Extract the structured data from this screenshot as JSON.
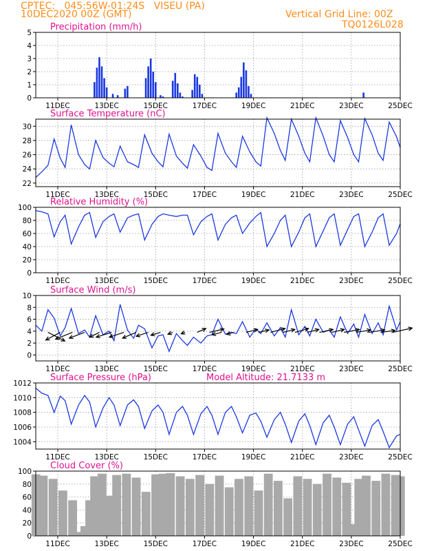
{
  "header": {
    "line1_left": "CPTEC:   045:56W-01:24S   VISEU (PA)",
    "line2_left": "10DEC2020 00Z (GMT)",
    "line1_right": "Vertical Grid Line: 00Z",
    "line2_right": "TQ0126L028"
  },
  "colors": {
    "header": "#ff8c1a",
    "panel_title": "#e0118f",
    "line": "#1a38e0",
    "precip_bar": "#1a38e0",
    "cloud_fill": "#a9a9a9",
    "wind_arrow": "#000000"
  },
  "x_axis": {
    "tick_labels": [
      "11DEC",
      "13DEC",
      "15DEC",
      "17DEC",
      "19DEC",
      "21DEC",
      "23DEC",
      "25DEC"
    ],
    "tick_days": [
      1,
      3,
      5,
      7,
      9,
      11,
      13,
      15
    ],
    "range_days": [
      0.1,
      15
    ]
  },
  "chart_data": [
    {
      "type": "bar",
      "id": "precip",
      "title": "Precipitation (mm/h)",
      "ylim": [
        0,
        5
      ],
      "yticks": [
        0,
        1,
        2,
        3,
        4,
        5
      ],
      "grid": true,
      "x": [
        2.5,
        2.6,
        2.7,
        2.8,
        2.9,
        3.0,
        3.25,
        3.45,
        3.75,
        3.85,
        4.6,
        4.7,
        4.8,
        4.9,
        5.0,
        5.2,
        5.3,
        5.7,
        5.8,
        5.9,
        6.0,
        6.1,
        6.5,
        6.6,
        6.7,
        6.8,
        6.9,
        8.3,
        8.4,
        8.5,
        8.6,
        8.7,
        8.8,
        8.9,
        13.5
      ],
      "values": [
        1.2,
        2.3,
        3.1,
        2.4,
        1.5,
        0.8,
        0.3,
        0.2,
        0.7,
        0.9,
        1.5,
        2.4,
        3.0,
        2.0,
        1.2,
        0.2,
        0.1,
        1.3,
        1.9,
        1.1,
        0.4,
        0.1,
        0.6,
        1.8,
        1.6,
        1.0,
        0.3,
        0.4,
        0.8,
        1.6,
        2.7,
        2.1,
        0.9,
        0.3,
        0.4
      ]
    },
    {
      "type": "line",
      "id": "temp",
      "title": "Surface Temperature (nC)",
      "ylim": [
        21.5,
        31
      ],
      "yticks": [
        22,
        24,
        26,
        28,
        30
      ],
      "grid": true,
      "x": [
        0.1,
        0.35,
        0.6,
        0.85,
        1.1,
        1.3,
        1.55,
        1.85,
        2.1,
        2.3,
        2.55,
        2.85,
        3.1,
        3.3,
        3.55,
        3.85,
        4.1,
        4.3,
        4.55,
        4.85,
        5.1,
        5.3,
        5.55,
        5.85,
        6.1,
        6.3,
        6.55,
        6.85,
        7.1,
        7.3,
        7.55,
        7.85,
        8.1,
        8.3,
        8.55,
        8.85,
        9.1,
        9.3,
        9.55,
        9.85,
        10.1,
        10.3,
        10.55,
        10.85,
        11.1,
        11.3,
        11.55,
        11.85,
        12.1,
        12.3,
        12.55,
        12.85,
        13.1,
        13.3,
        13.55,
        13.85,
        14.1,
        14.3,
        14.55,
        14.85,
        15.0
      ],
      "values": [
        22.8,
        23.6,
        24.5,
        28.2,
        25.5,
        24.2,
        30.2,
        26.0,
        24.6,
        24.0,
        28.0,
        25.6,
        24.8,
        24.3,
        27.2,
        25.0,
        24.6,
        24.2,
        28.8,
        26.2,
        25.0,
        24.3,
        28.9,
        25.8,
        24.8,
        24.1,
        27.4,
        25.8,
        24.2,
        23.8,
        29.0,
        26.2,
        25.0,
        24.2,
        28.6,
        26.4,
        25.0,
        24.4,
        31.2,
        29.0,
        26.6,
        25.2,
        31.0,
        28.6,
        26.2,
        25.0,
        31.2,
        28.6,
        26.0,
        25.0,
        30.8,
        28.4,
        26.0,
        25.0,
        31.1,
        28.8,
        26.2,
        25.2,
        30.6,
        28.5,
        27.0
      ]
    },
    {
      "type": "line",
      "id": "rh",
      "title": "Relative Humidity (%)",
      "ylim": [
        0,
        100
      ],
      "yticks": [
        0,
        20,
        40,
        60,
        80,
        100
      ],
      "grid": true,
      "x": [
        0.1,
        0.35,
        0.6,
        0.85,
        1.1,
        1.3,
        1.55,
        1.85,
        2.1,
        2.3,
        2.55,
        2.85,
        3.1,
        3.3,
        3.55,
        3.85,
        4.1,
        4.3,
        4.55,
        4.85,
        5.1,
        5.3,
        5.55,
        5.85,
        6.1,
        6.3,
        6.55,
        6.85,
        7.1,
        7.3,
        7.55,
        7.85,
        8.1,
        8.3,
        8.55,
        8.85,
        9.1,
        9.3,
        9.55,
        9.85,
        10.1,
        10.3,
        10.55,
        10.85,
        11.1,
        11.3,
        11.55,
        11.85,
        12.1,
        12.3,
        12.55,
        12.85,
        13.1,
        13.3,
        13.55,
        13.85,
        14.1,
        14.3,
        14.55,
        14.85,
        15.0
      ],
      "values": [
        95,
        93,
        90,
        55,
        78,
        88,
        44,
        70,
        88,
        92,
        54,
        78,
        86,
        90,
        62,
        84,
        88,
        90,
        50,
        74,
        86,
        90,
        88,
        86,
        88,
        88,
        58,
        78,
        86,
        90,
        50,
        74,
        84,
        88,
        60,
        76,
        86,
        92,
        40,
        60,
        80,
        88,
        40,
        62,
        84,
        90,
        40,
        64,
        84,
        90,
        42,
        66,
        86,
        90,
        40,
        62,
        84,
        90,
        42,
        60,
        75
      ]
    },
    {
      "type": "line",
      "id": "wind",
      "title": "Surface Wind (m/s)",
      "ylim": [
        -1,
        10
      ],
      "yticks": [
        0,
        2,
        4,
        6,
        8,
        10
      ],
      "grid": true,
      "x": [
        0.1,
        0.35,
        0.6,
        0.85,
        1.1,
        1.3,
        1.55,
        1.85,
        2.1,
        2.3,
        2.55,
        2.85,
        3.1,
        3.3,
        3.55,
        3.85,
        4.1,
        4.3,
        4.55,
        4.85,
        5.1,
        5.3,
        5.55,
        5.85,
        6.1,
        6.3,
        6.55,
        6.85,
        7.1,
        7.3,
        7.55,
        7.85,
        8.1,
        8.3,
        8.55,
        8.85,
        9.1,
        9.3,
        9.55,
        9.85,
        10.1,
        10.3,
        10.55,
        10.85,
        11.1,
        11.3,
        11.55,
        11.85,
        12.1,
        12.3,
        12.55,
        12.85,
        13.1,
        13.3,
        13.55,
        13.85,
        14.1,
        14.3,
        14.55,
        14.85,
        15.0
      ],
      "values": [
        5.0,
        4.0,
        7.6,
        6.2,
        3.2,
        4.6,
        7.8,
        3.6,
        4.2,
        3.0,
        6.6,
        3.4,
        4.0,
        2.4,
        8.5,
        4.2,
        2.8,
        5.0,
        4.4,
        1.2,
        3.2,
        3.4,
        0.6,
        3.6,
        2.4,
        1.6,
        3.0,
        2.0,
        3.2,
        3.4,
        6.0,
        3.5,
        3.8,
        3.6,
        5.6,
        3.0,
        4.4,
        3.6,
        5.4,
        3.2,
        4.6,
        3.0,
        7.6,
        3.4,
        4.8,
        3.2,
        6.0,
        3.8,
        4.2,
        3.0,
        6.4,
        3.6,
        5.2,
        3.0,
        6.8,
        3.6,
        5.4,
        3.4,
        8.2,
        4.2,
        5.6
      ],
      "arrows_x": [
        0.6,
        1.1,
        1.6,
        2.1,
        2.7,
        3.2,
        3.7,
        4.2,
        4.7,
        5.2,
        5.7,
        6.2,
        6.7,
        7.2,
        7.7,
        8.2,
        8.7,
        9.2,
        9.7,
        10.2,
        10.7,
        11.2,
        11.7,
        12.2,
        12.7,
        13.2,
        13.7,
        14.2,
        14.7
      ],
      "arrows_u": [
        3.5,
        -3.0,
        -3.5,
        -3.2,
        -2.0,
        -3.2,
        -3.0,
        -2.8,
        -2.5,
        -2.0,
        -1.0,
        -0.8,
        1.8,
        3.0,
        -2.0,
        -1.5,
        2.4,
        2.2,
        3.0,
        2.5,
        2.8,
        2.4,
        2.8,
        2.6,
        3.2,
        3.0,
        3.4,
        3.0,
        4.0
      ],
      "arrows_v": [
        -1.8,
        -1.6,
        -1.4,
        -1.2,
        -1.0,
        -1.0,
        -1.0,
        -1.2,
        -0.8,
        -0.6,
        -0.4,
        -0.3,
        0.8,
        0.7,
        -0.5,
        -0.4,
        0.6,
        0.5,
        0.8,
        0.6,
        0.8,
        0.6,
        0.6,
        0.6,
        0.6,
        0.5,
        0.5,
        0.4,
        0.9
      ]
    },
    {
      "type": "line",
      "id": "pressure",
      "title": "Surface Pressure (hPa)",
      "subtitle": "Model Altitude: 21.7133 m",
      "ylim": [
        1003,
        1012
      ],
      "yticks": [
        1004,
        1006,
        1008,
        1010,
        1012
      ],
      "grid": true,
      "x": [
        0.1,
        0.35,
        0.6,
        0.85,
        1.1,
        1.3,
        1.55,
        1.85,
        2.1,
        2.3,
        2.55,
        2.85,
        3.1,
        3.3,
        3.55,
        3.85,
        4.1,
        4.3,
        4.55,
        4.85,
        5.1,
        5.3,
        5.55,
        5.85,
        6.1,
        6.3,
        6.55,
        6.85,
        7.1,
        7.3,
        7.55,
        7.85,
        8.1,
        8.3,
        8.55,
        8.85,
        9.1,
        9.3,
        9.55,
        9.85,
        10.1,
        10.3,
        10.55,
        10.85,
        11.1,
        11.3,
        11.55,
        11.85,
        12.1,
        12.3,
        12.55,
        12.85,
        13.1,
        13.3,
        13.55,
        13.85,
        14.1,
        14.3,
        14.55,
        14.85,
        15.0
      ],
      "values": [
        1011.3,
        1010.6,
        1010.3,
        1008.0,
        1010.2,
        1009.6,
        1006.4,
        1009.0,
        1010.3,
        1009.4,
        1006.0,
        1008.6,
        1010.0,
        1009.0,
        1006.2,
        1009.0,
        1009.7,
        1008.8,
        1005.8,
        1008.2,
        1009.0,
        1008.0,
        1005.0,
        1008.0,
        1008.8,
        1007.6,
        1005.0,
        1007.8,
        1008.8,
        1007.6,
        1005.0,
        1008.0,
        1008.8,
        1007.4,
        1005.2,
        1007.6,
        1007.9,
        1006.8,
        1004.6,
        1007.0,
        1008.0,
        1006.4,
        1003.9,
        1006.8,
        1007.8,
        1006.2,
        1003.6,
        1006.6,
        1007.6,
        1006.0,
        1003.6,
        1006.4,
        1007.4,
        1005.6,
        1003.4,
        1006.2,
        1007.0,
        1005.4,
        1003.2,
        1004.8,
        1005.0
      ]
    },
    {
      "type": "area",
      "id": "cloud",
      "title": "Cloud Cover (%)",
      "ylim": [
        0,
        100
      ],
      "yticks": [
        0,
        20,
        40,
        60,
        80,
        100
      ],
      "grid": true,
      "x": [
        0.1,
        0.4,
        0.8,
        1.2,
        1.6,
        1.9,
        2.1,
        2.3,
        2.5,
        2.8,
        3.1,
        3.4,
        3.8,
        4.2,
        4.6,
        5.0,
        5.3,
        5.6,
        6.0,
        6.4,
        6.8,
        7.2,
        7.6,
        8.0,
        8.4,
        8.8,
        9.2,
        9.6,
        10.0,
        10.4,
        10.8,
        11.2,
        11.6,
        12.0,
        12.4,
        12.8,
        13.0,
        13.3,
        13.6,
        14.0,
        14.4,
        14.8,
        15.0
      ],
      "values": [
        95,
        93,
        88,
        70,
        55,
        6,
        15,
        55,
        92,
        96,
        62,
        94,
        96,
        90,
        68,
        95,
        96,
        97,
        92,
        88,
        94,
        80,
        93,
        75,
        88,
        92,
        70,
        96,
        85,
        58,
        92,
        88,
        80,
        96,
        90,
        82,
        18,
        88,
        93,
        85,
        96,
        94,
        92
      ]
    }
  ]
}
